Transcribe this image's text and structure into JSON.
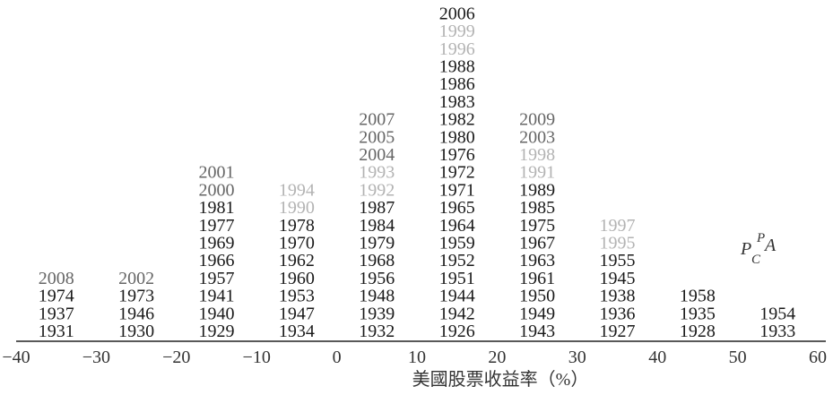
{
  "chart_data": {
    "type": "histogram",
    "title": "",
    "xlabel": "美國股票收益率（%）",
    "ylabel": "",
    "xlim": [
      -40,
      60
    ],
    "xticks": [
      "−40",
      "−30",
      "−20",
      "−10",
      "0",
      "10",
      "20",
      "30",
      "40",
      "50",
      "60"
    ],
    "bin_width": 10,
    "grid": false,
    "colors": {
      "normal": "#1a1a1a",
      "gray": "#666666",
      "light": "#b3b3b3"
    },
    "bins": [
      {
        "x0": -40,
        "x1": -30,
        "years": [
          {
            "y": "1931",
            "c": "normal"
          },
          {
            "y": "1937",
            "c": "normal"
          },
          {
            "y": "1974",
            "c": "normal"
          },
          {
            "y": "2008",
            "c": "gray"
          }
        ]
      },
      {
        "x0": -30,
        "x1": -20,
        "years": [
          {
            "y": "1930",
            "c": "normal"
          },
          {
            "y": "1946",
            "c": "normal"
          },
          {
            "y": "1973",
            "c": "normal"
          },
          {
            "y": "2002",
            "c": "gray"
          }
        ]
      },
      {
        "x0": -20,
        "x1": -10,
        "years": [
          {
            "y": "1929",
            "c": "normal"
          },
          {
            "y": "1940",
            "c": "normal"
          },
          {
            "y": "1941",
            "c": "normal"
          },
          {
            "y": "1957",
            "c": "normal"
          },
          {
            "y": "1966",
            "c": "normal"
          },
          {
            "y": "1969",
            "c": "normal"
          },
          {
            "y": "1977",
            "c": "normal"
          },
          {
            "y": "1981",
            "c": "normal"
          },
          {
            "y": "2000",
            "c": "gray"
          },
          {
            "y": "2001",
            "c": "gray"
          }
        ]
      },
      {
        "x0": -10,
        "x1": 0,
        "years": [
          {
            "y": "1934",
            "c": "normal"
          },
          {
            "y": "1947",
            "c": "normal"
          },
          {
            "y": "1953",
            "c": "normal"
          },
          {
            "y": "1960",
            "c": "normal"
          },
          {
            "y": "1962",
            "c": "normal"
          },
          {
            "y": "1970",
            "c": "normal"
          },
          {
            "y": "1978",
            "c": "normal"
          },
          {
            "y": "1990",
            "c": "light"
          },
          {
            "y": "1994",
            "c": "light"
          }
        ]
      },
      {
        "x0": 0,
        "x1": 10,
        "years": [
          {
            "y": "1932",
            "c": "normal"
          },
          {
            "y": "1939",
            "c": "normal"
          },
          {
            "y": "1948",
            "c": "normal"
          },
          {
            "y": "1956",
            "c": "normal"
          },
          {
            "y": "1968",
            "c": "normal"
          },
          {
            "y": "1979",
            "c": "normal"
          },
          {
            "y": "1984",
            "c": "normal"
          },
          {
            "y": "1987",
            "c": "normal"
          },
          {
            "y": "1992",
            "c": "light"
          },
          {
            "y": "1993",
            "c": "light"
          },
          {
            "y": "2004",
            "c": "gray"
          },
          {
            "y": "2005",
            "c": "gray"
          },
          {
            "y": "2007",
            "c": "gray"
          }
        ]
      },
      {
        "x0": 10,
        "x1": 20,
        "years": [
          {
            "y": "1926",
            "c": "normal"
          },
          {
            "y": "1942",
            "c": "normal"
          },
          {
            "y": "1944",
            "c": "normal"
          },
          {
            "y": "1951",
            "c": "normal"
          },
          {
            "y": "1952",
            "c": "normal"
          },
          {
            "y": "1959",
            "c": "normal"
          },
          {
            "y": "1964",
            "c": "normal"
          },
          {
            "y": "1965",
            "c": "normal"
          },
          {
            "y": "1971",
            "c": "normal"
          },
          {
            "y": "1972",
            "c": "normal"
          },
          {
            "y": "1976",
            "c": "normal"
          },
          {
            "y": "1980",
            "c": "normal"
          },
          {
            "y": "1982",
            "c": "normal"
          },
          {
            "y": "1983",
            "c": "normal"
          },
          {
            "y": "1986",
            "c": "normal"
          },
          {
            "y": "1988",
            "c": "normal"
          },
          {
            "y": "1996",
            "c": "light"
          },
          {
            "y": "1999",
            "c": "light"
          },
          {
            "y": "2006",
            "c": "normal"
          }
        ]
      },
      {
        "x0": 20,
        "x1": 30,
        "years": [
          {
            "y": "1943",
            "c": "normal"
          },
          {
            "y": "1949",
            "c": "normal"
          },
          {
            "y": "1950",
            "c": "normal"
          },
          {
            "y": "1961",
            "c": "normal"
          },
          {
            "y": "1963",
            "c": "normal"
          },
          {
            "y": "1967",
            "c": "normal"
          },
          {
            "y": "1975",
            "c": "normal"
          },
          {
            "y": "1985",
            "c": "normal"
          },
          {
            "y": "1989",
            "c": "normal"
          },
          {
            "y": "1991",
            "c": "light"
          },
          {
            "y": "1998",
            "c": "light"
          },
          {
            "y": "2003",
            "c": "gray"
          },
          {
            "y": "2009",
            "c": "gray"
          }
        ]
      },
      {
        "x0": 30,
        "x1": 40,
        "years": [
          {
            "y": "1927",
            "c": "normal"
          },
          {
            "y": "1936",
            "c": "normal"
          },
          {
            "y": "1938",
            "c": "normal"
          },
          {
            "y": "1945",
            "c": "normal"
          },
          {
            "y": "1955",
            "c": "normal"
          },
          {
            "y": "1995",
            "c": "light"
          },
          {
            "y": "1997",
            "c": "light"
          }
        ]
      },
      {
        "x0": 40,
        "x1": 50,
        "years": [
          {
            "y": "1928",
            "c": "normal"
          },
          {
            "y": "1935",
            "c": "normal"
          },
          {
            "y": "1958",
            "c": "normal"
          }
        ]
      },
      {
        "x0": 50,
        "x1": 60,
        "years": [
          {
            "y": "1933",
            "c": "normal"
          },
          {
            "y": "1954",
            "c": "normal"
          }
        ]
      }
    ],
    "annotation": {
      "base": "P",
      "sub": "C",
      "sup": "P",
      "tail": "A"
    }
  }
}
